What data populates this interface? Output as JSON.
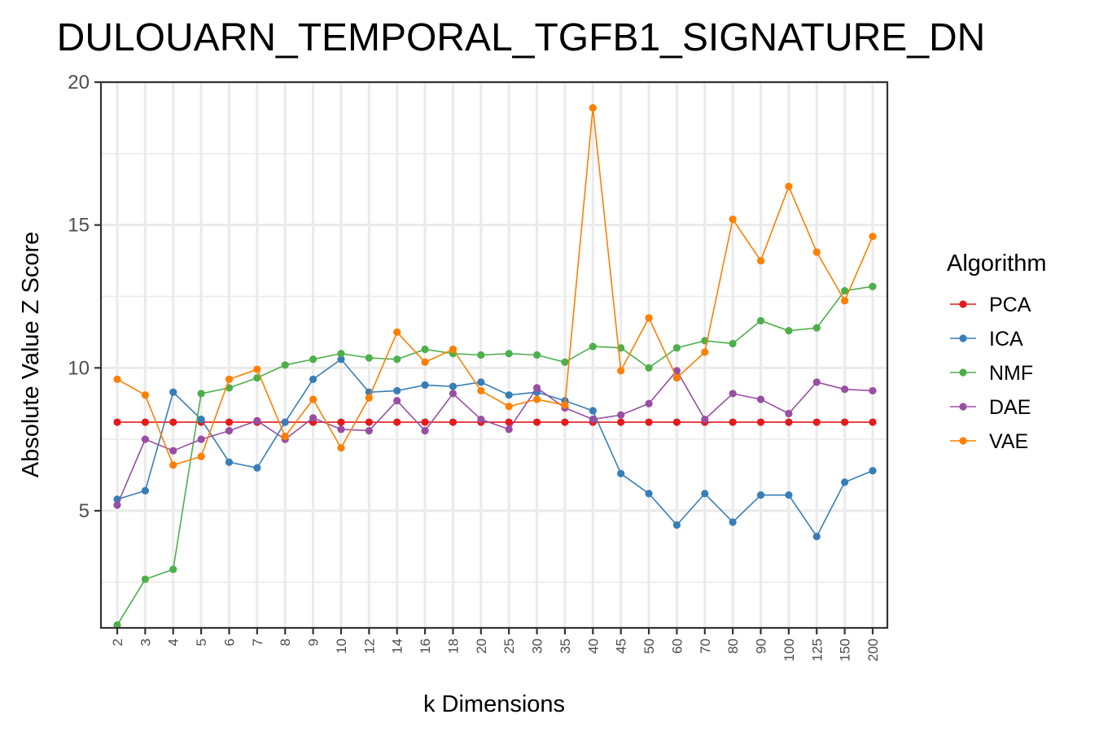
{
  "chart_data": {
    "type": "line",
    "title": "DULOUARN_TEMPORAL_TGFB1_SIGNATURE_DN",
    "xlabel": "k Dimensions",
    "ylabel": "Absolute Value Z Score",
    "ylim": [
      0.9,
      20
    ],
    "yticks": [
      5,
      10,
      15,
      20
    ],
    "yminor": [
      2.5,
      7.5,
      12.5,
      17.5
    ],
    "grid": true,
    "legend_title": "Algorithm",
    "legend_position": "right",
    "categories": [
      "2",
      "3",
      "4",
      "5",
      "6",
      "7",
      "8",
      "9",
      "10",
      "12",
      "14",
      "16",
      "18",
      "20",
      "25",
      "30",
      "35",
      "40",
      "45",
      "50",
      "60",
      "70",
      "80",
      "90",
      "100",
      "125",
      "150",
      "200"
    ],
    "series": [
      {
        "name": "PCA",
        "color": "#e41a1c",
        "values": [
          8.1,
          8.1,
          8.1,
          8.1,
          8.1,
          8.1,
          8.1,
          8.1,
          8.1,
          8.1,
          8.1,
          8.1,
          8.1,
          8.1,
          8.1,
          8.1,
          8.1,
          8.1,
          8.1,
          8.1,
          8.1,
          8.1,
          8.1,
          8.1,
          8.1,
          8.1,
          8.1,
          8.1
        ]
      },
      {
        "name": "ICA",
        "color": "#377eb8",
        "values": [
          5.4,
          5.7,
          9.15,
          8.2,
          6.7,
          6.5,
          8.1,
          9.6,
          10.3,
          9.15,
          9.2,
          9.4,
          9.35,
          9.5,
          9.05,
          9.15,
          8.85,
          8.5,
          6.3,
          5.6,
          4.5,
          5.6,
          4.6,
          5.55,
          5.55,
          4.1,
          6.0,
          6.4
        ]
      },
      {
        "name": "NMF",
        "color": "#4daf4a",
        "values": [
          1.0,
          2.6,
          2.95,
          9.1,
          9.3,
          9.65,
          10.1,
          10.3,
          10.5,
          10.35,
          10.3,
          10.65,
          10.5,
          10.45,
          10.5,
          10.45,
          10.2,
          10.75,
          10.7,
          10.0,
          10.7,
          10.95,
          10.85,
          11.65,
          11.3,
          11.4,
          12.7,
          12.85
        ]
      },
      {
        "name": "DAE",
        "color": "#984ea3",
        "values": [
          5.2,
          7.5,
          7.1,
          7.5,
          7.8,
          8.15,
          7.5,
          8.25,
          7.85,
          7.8,
          8.85,
          7.8,
          9.1,
          8.2,
          7.85,
          9.3,
          8.6,
          8.2,
          8.35,
          8.75,
          9.9,
          8.2,
          9.1,
          8.9,
          8.4,
          9.5,
          9.25,
          9.2
        ]
      },
      {
        "name": "VAE",
        "color": "#ff7f00",
        "values": [
          9.6,
          9.05,
          6.6,
          6.9,
          9.6,
          9.95,
          7.6,
          8.9,
          7.2,
          8.95,
          11.25,
          10.2,
          10.65,
          9.2,
          8.65,
          8.9,
          8.7,
          19.1,
          9.9,
          11.75,
          9.65,
          10.55,
          15.2,
          13.75,
          16.35,
          14.05,
          12.35,
          14.6
        ]
      }
    ]
  }
}
